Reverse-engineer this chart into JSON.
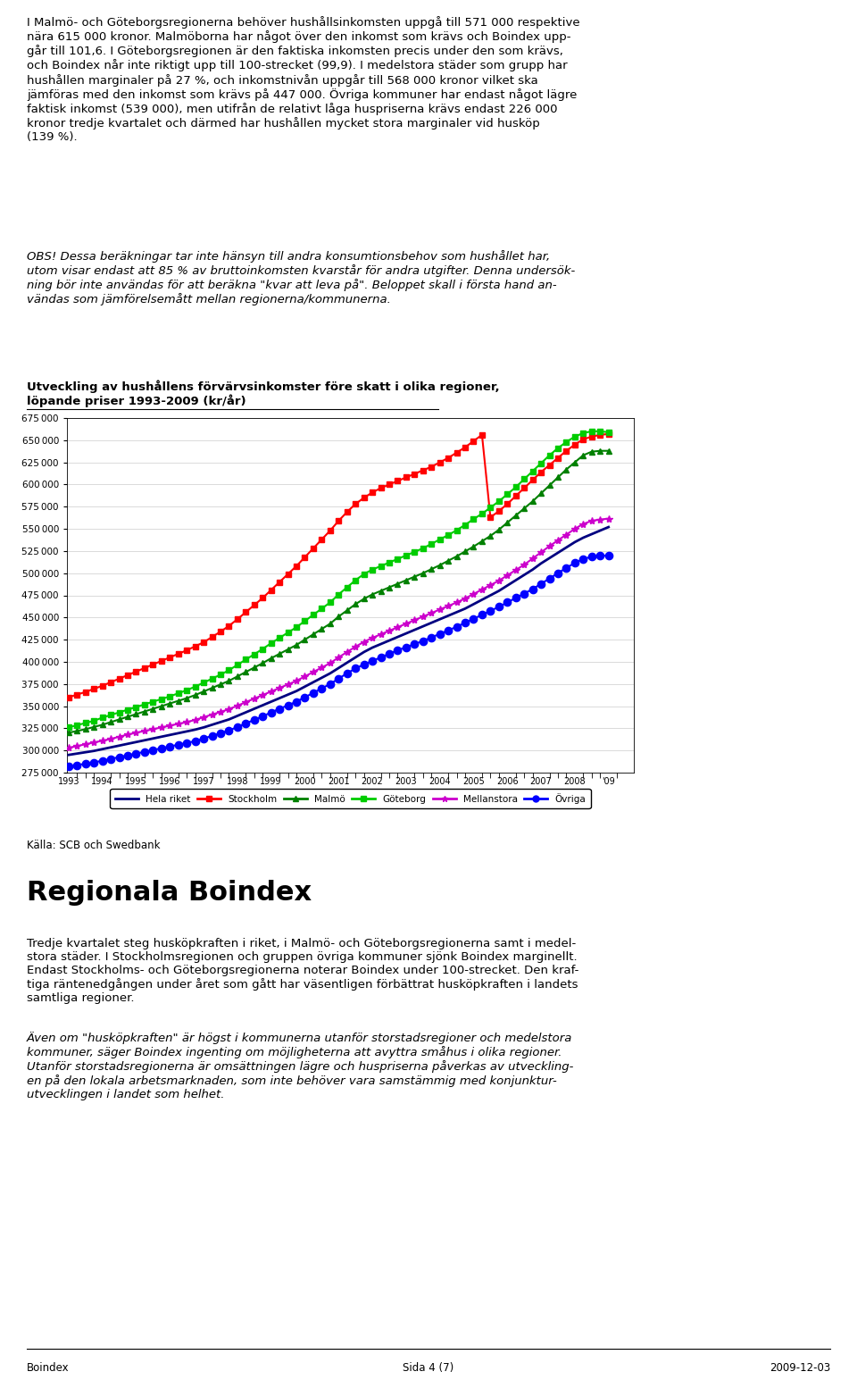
{
  "title_line1": "Utveckling av hushållens förvärvsinkomster före skatt i olika regioner,",
  "title_line2": "löpande priser 1993-2009 (kr/år)",
  "source": "Källa: SCB och Swedbank",
  "ylim": [
    275000,
    675000
  ],
  "yticks": [
    275000,
    300000,
    325000,
    350000,
    375000,
    400000,
    425000,
    450000,
    475000,
    500000,
    525000,
    550000,
    575000,
    600000,
    625000,
    650000,
    675000
  ],
  "xlim_start": 1993,
  "xlim_end": 2009.75,
  "para1": "I Malmö- och Göteborgsregionerna behöver hushållsinkomsten uppgå till 571 000 respektive\nnära 615 000 kronor. Malmöborna har något över den inkomst som krävs och Boindex upp-\ngår till 101,6. I Göteborgsregionen är den faktiska inkomsten precis under den som krävs,\noch Boindex når inte riktigt upp till 100-strecket (99,9). I medelstora städer som grupp har\nhushållen marginaler på 27 %, och inkomstnivån uppgår till 568 000 kronor vilket ska\njämföras med den inkomst som krävs på 447 000. Övriga kommuner har endast något lägre\nfaktisk inkomst (539 000), men utifrån de relativt låga huspriserna krävs endast 226 000\nkronor tredje kvartalet och därmed har hushållen mycket stora marginaler vid husköp\n(139 %).",
  "obs_text": "OBS! Dessa beräkningar tar inte hänsyn till andra konsumtionsbehov som hushållet har,\nutom visar endast att 85 % av bruttoinkomsten kvarstår för andra utgifter. Denna undersök-\nning bör inte användas för att beräkna \"kvar att leva på\". Beloppet skall i första hand an-\nvändas som jämförelsemått mellan regionerna/kommunerna.",
  "rb_heading": "Regionala Boindex",
  "rb_body": "Tredje kvartalet steg husköpkraften i riket, i Malmö- och Göteborgsregionerna samt i medel-\nstora städer. I Stockholmsregionen och gruppen övriga kommuner sjönk Boindex marginellt.\nEndast Stockholms- och Göteborgsregionerna noterar Boindex under 100-strecket. Den kraf-\ntiga räntenedgången under året som gått har väsentligen förbättrat husköpkraften i landets\nsamtliga regioner.",
  "italic_body": "Även om \"husköpkraften\" är högst i kommunerna utanför storstadsregioner och medelstora\nkommuner, säger Boindex ingenting om möjligheterna att avyttra småhus i olika regioner.\nUtanför storstadsregionerna är omsättningen lägre och huspriserna påverkas av utveckling-\nen på den lokala arbetsmarknaden, som inte behöver vara samstämmig med konjunktur-\nutvecklingen i landet som helhet.",
  "footer_left": "Boindex",
  "footer_center": "Sida 4 (7)",
  "footer_right": "2009-12-03",
  "series": {
    "Hela riket": {
      "color": "#000080",
      "marker": "none",
      "linewidth": 2.0,
      "linestyle": "-",
      "values": [
        295000,
        296500,
        298000,
        299500,
        301500,
        303500,
        305500,
        307500,
        309500,
        311500,
        313500,
        315500,
        317500,
        319500,
        321500,
        323500,
        326000,
        329000,
        332000,
        335000,
        339000,
        343000,
        347000,
        351000,
        355000,
        359000,
        363000,
        367000,
        372000,
        377000,
        382000,
        387000,
        393000,
        399000,
        405000,
        411000,
        416000,
        420000,
        424000,
        428000,
        432000,
        436000,
        440000,
        444000,
        448000,
        452000,
        456000,
        460000,
        465000,
        470000,
        475000,
        480000,
        486000,
        492000,
        498000,
        504000,
        511000,
        517000,
        523000,
        529000,
        535000,
        540000,
        544000,
        548000,
        552000
      ]
    },
    "Stockholm": {
      "color": "#FF0000",
      "marker": "s",
      "markersize": 5,
      "linewidth": 1.5,
      "linestyle": "-",
      "values": [
        360000,
        363000,
        366000,
        369500,
        373000,
        377000,
        381000,
        385000,
        389000,
        393000,
        397000,
        401000,
        405000,
        409000,
        413000,
        417500,
        422000,
        428000,
        434000,
        440500,
        448000,
        456000,
        464000,
        472000,
        481000,
        490000,
        499000,
        508000,
        518000,
        528000,
        538000,
        548000,
        559000,
        569000,
        578000,
        585000,
        591000,
        596000,
        600000,
        604000,
        608000,
        612000,
        616000,
        620000,
        625000,
        630000,
        636000,
        642000,
        649000,
        656000,
        563000,
        570000,
        578000,
        587000,
        596000,
        605000,
        614000,
        622000,
        630000,
        638000,
        645000,
        651000,
        654000,
        656000,
        657000
      ]
    },
    "Malmö": {
      "color": "#008000",
      "marker": "^",
      "markersize": 5,
      "linewidth": 1.5,
      "linestyle": "-",
      "values": [
        320000,
        322000,
        324000,
        326500,
        329000,
        332000,
        335000,
        338000,
        341000,
        344000,
        347000,
        350000,
        353000,
        356000,
        359000,
        362500,
        366500,
        370500,
        374500,
        378500,
        383500,
        388500,
        393500,
        398500,
        404000,
        409000,
        414000,
        419000,
        425000,
        431000,
        437000,
        443000,
        451000,
        458000,
        465000,
        471000,
        476000,
        480000,
        484000,
        488000,
        492000,
        496000,
        500000,
        504500,
        509000,
        514000,
        519000,
        524500,
        530000,
        536000,
        542000,
        549000,
        557000,
        565000,
        573000,
        581000,
        590000,
        599000,
        608000,
        617000,
        625000,
        633000,
        637000,
        638000,
        638000
      ]
    },
    "Göteborg": {
      "color": "#00CC00",
      "marker": "s",
      "markersize": 5,
      "linewidth": 1.5,
      "linestyle": "-",
      "values": [
        326000,
        328500,
        331000,
        333500,
        337000,
        340000,
        343000,
        346000,
        349000,
        352000,
        355000,
        358000,
        361000,
        364500,
        368000,
        372000,
        376500,
        381000,
        385500,
        390500,
        396500,
        402500,
        408500,
        414500,
        421000,
        427000,
        433000,
        439000,
        446000,
        453000,
        460000,
        467000,
        476000,
        484000,
        492000,
        499000,
        504000,
        508000,
        512000,
        516000,
        520000,
        524000,
        528000,
        533000,
        538000,
        543000,
        548500,
        554500,
        561000,
        567000,
        574000,
        581000,
        589000,
        597000,
        606000,
        615000,
        624000,
        633000,
        641000,
        648000,
        654000,
        658000,
        660000,
        660000,
        659000
      ]
    },
    "Mellanstora": {
      "color": "#CC00CC",
      "marker": "*",
      "markersize": 6,
      "linewidth": 1.5,
      "linestyle": "-",
      "values": [
        303000,
        305000,
        307000,
        309000,
        311000,
        313000,
        315500,
        318000,
        320000,
        322000,
        324000,
        326000,
        328000,
        330000,
        332000,
        334500,
        337500,
        340500,
        343500,
        346500,
        350500,
        354500,
        358500,
        362500,
        366500,
        370500,
        374500,
        378500,
        383500,
        388500,
        393500,
        398500,
        405000,
        411000,
        417000,
        422500,
        427000,
        431000,
        435000,
        439000,
        443000,
        447000,
        451000,
        455000,
        459000,
        463000,
        467000,
        471500,
        476500,
        481500,
        486500,
        491500,
        497500,
        503500,
        509500,
        516500,
        523500,
        530500,
        537000,
        543500,
        550000,
        555500,
        559000,
        560500,
        561500
      ]
    },
    "Övriga": {
      "color": "#0000FF",
      "marker": "o",
      "markersize": 6,
      "linewidth": 1.5,
      "linestyle": "-",
      "values": [
        282000,
        283500,
        285000,
        286500,
        288500,
        290500,
        292500,
        294500,
        296500,
        298500,
        300500,
        302500,
        304500,
        306500,
        308500,
        310500,
        313500,
        316500,
        319500,
        322500,
        326500,
        330500,
        334500,
        338500,
        343000,
        347000,
        351000,
        355000,
        360000,
        365000,
        370000,
        375000,
        381000,
        387000,
        392500,
        397000,
        401000,
        405000,
        409000,
        413000,
        416500,
        420000,
        423500,
        427500,
        431500,
        435500,
        439500,
        444000,
        448500,
        453000,
        457500,
        462000,
        467000,
        472000,
        477000,
        482000,
        488000,
        494000,
        500000,
        506000,
        511500,
        516000,
        518500,
        519500,
        520000
      ]
    }
  },
  "legend_order": [
    "Hela riket",
    "Stockholm",
    "Malmö",
    "Göteborg",
    "Mellanstora",
    "Övriga"
  ],
  "legend_markers": {
    "Hela riket": "none",
    "Stockholm": "s",
    "Malmö": "^",
    "Göteborg": "s",
    "Mellanstora": "*",
    "Övriga": "o"
  }
}
